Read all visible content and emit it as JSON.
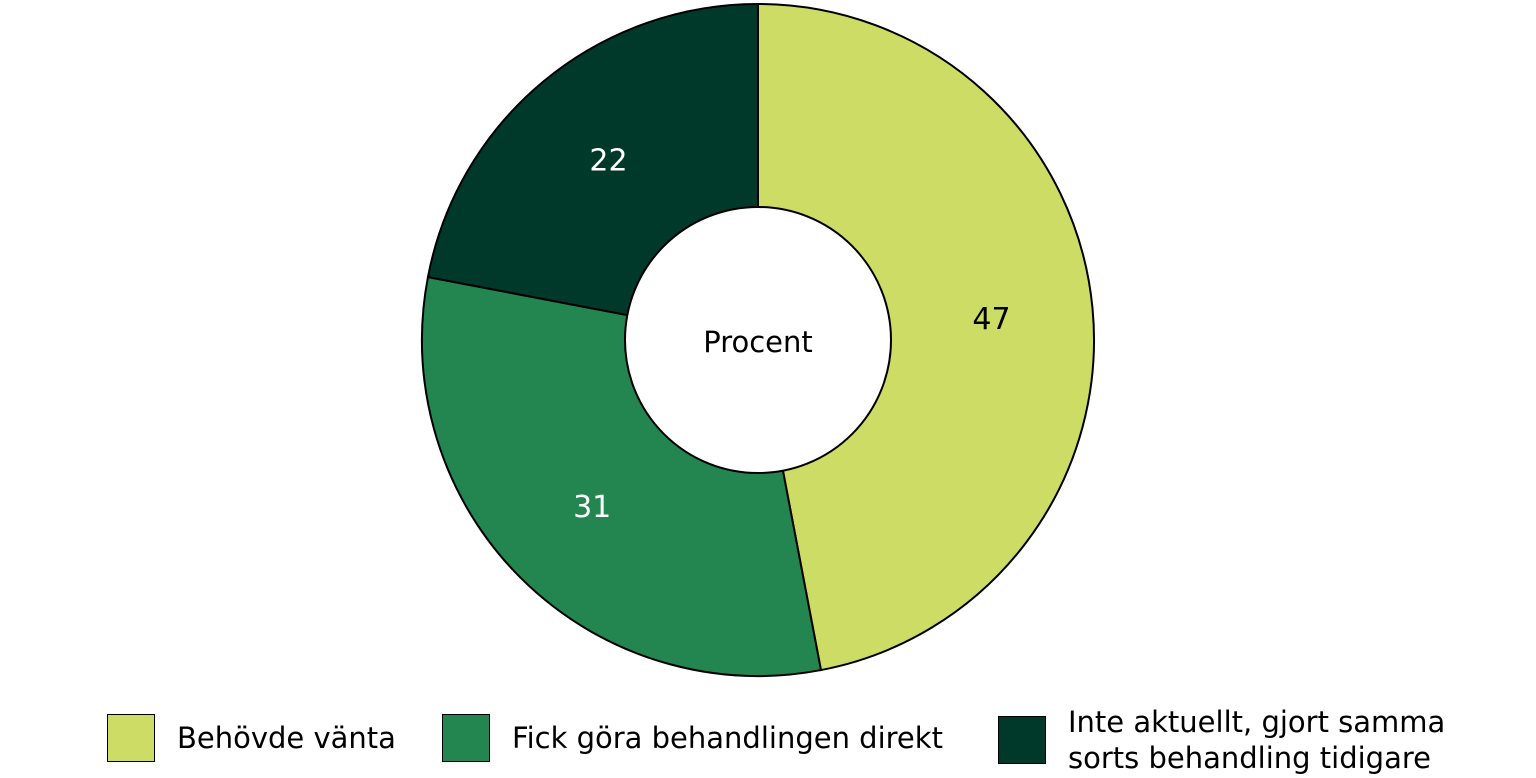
{
  "chart_data": {
    "type": "pie",
    "donut": true,
    "center_label": "Procent",
    "start_angle_deg": 0,
    "direction": "clockwise",
    "slices": [
      {
        "name": "Behövde vänta",
        "value": 47,
        "color": "#CCDC64",
        "label_color": "#000000"
      },
      {
        "name": "Fick göra behandlingen direkt",
        "value": 31,
        "color": "#238550",
        "label_color": "#ffffff"
      },
      {
        "name": "Inte aktuellt, gjort samma sorts behandling tidigare",
        "value": 22,
        "color": "#00392A",
        "label_color": "#ffffff"
      }
    ],
    "legend_position": "bottom"
  }
}
